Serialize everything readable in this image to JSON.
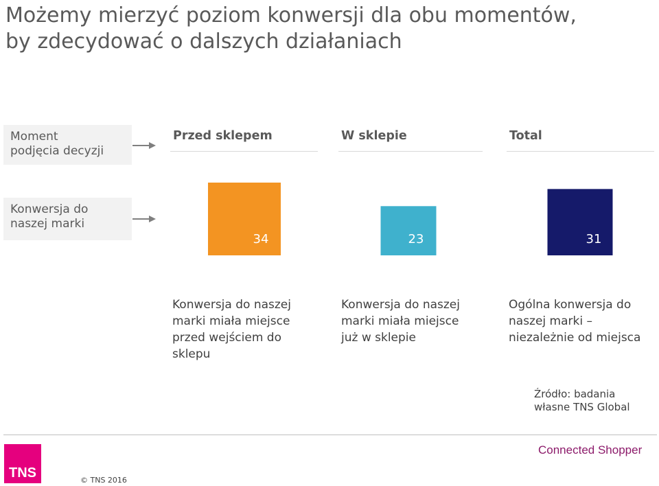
{
  "title": {
    "line1": "Możemy mierzyć poziom konwersji dla obu momentów,",
    "line2": "by zdecydować o dalszych działaniach"
  },
  "row_labels": {
    "moment": [
      "Moment",
      "podjęcia decyzji"
    ],
    "conversion": [
      "Konwersja do",
      "naszej marki"
    ]
  },
  "columns": [
    "Przed sklepem",
    "W sklepie",
    "Total"
  ],
  "descriptions": [
    [
      "Konwersja do naszej",
      "marki miała miejsce",
      "przed wejściem do",
      "sklepu"
    ],
    [
      "Konwersja do naszej",
      "marki miała miejsce",
      "już w sklepie"
    ],
    [
      "Ogólna konwersja do",
      "naszej marki –",
      "niezależnie od miejsca"
    ]
  ],
  "source": [
    "Źródło: badania",
    "własne TNS Global"
  ],
  "footer": {
    "logo_text": "TNS",
    "copyright": "© TNS 2016",
    "brand": "Connected Shopper"
  },
  "colors": {
    "przed_sklepem": "#f39422",
    "w_sklepie": "#3fb1cd",
    "total": "#151a6a",
    "logo": "#e5007e"
  },
  "chart_data": {
    "type": "bar",
    "categories": [
      "Przed sklepem",
      "W sklepie",
      "Total"
    ],
    "values": [
      34,
      23,
      31
    ],
    "ylim": [
      0,
      34
    ],
    "grid": false
  }
}
